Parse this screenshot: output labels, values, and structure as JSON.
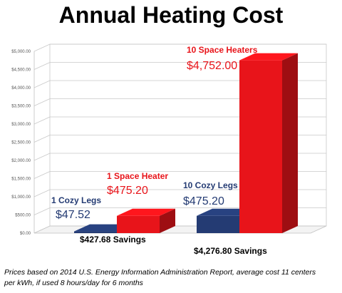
{
  "chart_data": {
    "type": "bar",
    "title": "Annual Heating Cost",
    "ylim": [
      0,
      5000
    ],
    "yticks": [
      0,
      500,
      1000,
      1500,
      2000,
      2500,
      3000,
      3500,
      4000,
      4500,
      5000
    ],
    "ytick_labels": [
      "$0.00",
      "$500.00",
      "$1,000.00",
      "$1,500.00",
      "$2,000.00",
      "$2,500.00",
      "$3,000.00",
      "$3,500.00",
      "$4,000.00",
      "$4,500.00",
      "$5,000.00"
    ],
    "grid": true,
    "groups": [
      {
        "savings_label": "$427.68 Savings",
        "bars": [
          {
            "name": "1 Cozy Legs",
            "value": 47.52,
            "value_label": "$47.52"
          },
          {
            "name": "1 Space Heater",
            "value": 475.2,
            "value_label": "$475.20"
          }
        ]
      },
      {
        "savings_label": "$4,276.80 Savings",
        "bars": [
          {
            "name": "10 Cozy Legs",
            "value": 475.2,
            "value_label": "$475.20"
          },
          {
            "name": "10 Space Heaters",
            "value": 4752.0,
            "value_label": "$4,752.00"
          }
        ]
      }
    ],
    "colors": {
      "cozy_legs": "#243b73",
      "space_heater": "#e8141a"
    }
  },
  "footnote": {
    "line1": "Prices based on 2014 U.S. Energy Information Administration Report, average cost 11 centers",
    "line2": "per kWh, if used 8 hours/day for 6 months"
  }
}
